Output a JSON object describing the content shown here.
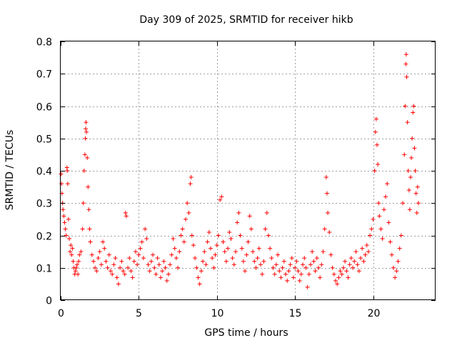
{
  "chart_data": {
    "type": "scatter",
    "title": "Day 309 of 2025, SRMTID for receiver hikb",
    "xlabel": "GPS time / hours",
    "ylabel": "SRMTID / TECUs",
    "xlim": [
      0,
      24
    ],
    "ylim": [
      0,
      0.8
    ],
    "xticks": [
      0,
      5,
      10,
      15,
      20
    ],
    "xtick_labels": [
      "0",
      "5",
      "10",
      "15",
      "20"
    ],
    "yticks": [
      0,
      0.1,
      0.2,
      0.3,
      0.4,
      0.5,
      0.6,
      0.7,
      0.8
    ],
    "ytick_labels": [
      "0",
      "0.1",
      "0.2",
      "0.3",
      "0.4",
      "0.5",
      "0.6",
      "0.7",
      "0.8"
    ],
    "grid": true,
    "marker": "+",
    "color": "#ff0000",
    "series": [
      {
        "name": "SRMTID",
        "points": [
          [
            0.02,
            0.39
          ],
          [
            0.05,
            0.36
          ],
          [
            0.08,
            0.33
          ],
          [
            0.12,
            0.3
          ],
          [
            0.15,
            0.28
          ],
          [
            0.2,
            0.26
          ],
          [
            0.25,
            0.24
          ],
          [
            0.3,
            0.22
          ],
          [
            0.35,
            0.2
          ],
          [
            0.4,
            0.41
          ],
          [
            0.42,
            0.4
          ],
          [
            0.45,
            0.36
          ],
          [
            0.5,
            0.25
          ],
          [
            0.55,
            0.19
          ],
          [
            0.6,
            0.15
          ],
          [
            0.65,
            0.17
          ],
          [
            0.7,
            0.14
          ],
          [
            0.75,
            0.16
          ],
          [
            0.8,
            0.12
          ],
          [
            0.85,
            0.1
          ],
          [
            0.9,
            0.08
          ],
          [
            0.95,
            0.09
          ],
          [
            1.0,
            0.1
          ],
          [
            1.05,
            0.11
          ],
          [
            1.1,
            0.08
          ],
          [
            1.15,
            0.12
          ],
          [
            1.2,
            0.14
          ],
          [
            1.3,
            0.15
          ],
          [
            1.4,
            0.22
          ],
          [
            1.45,
            0.3
          ],
          [
            1.5,
            0.4
          ],
          [
            1.55,
            0.45
          ],
          [
            1.58,
            0.5
          ],
          [
            1.6,
            0.53
          ],
          [
            1.62,
            0.55
          ],
          [
            1.65,
            0.52
          ],
          [
            1.7,
            0.44
          ],
          [
            1.75,
            0.35
          ],
          [
            1.8,
            0.28
          ],
          [
            1.85,
            0.22
          ],
          [
            1.9,
            0.18
          ],
          [
            2.0,
            0.14
          ],
          [
            2.1,
            0.12
          ],
          [
            2.2,
            0.1
          ],
          [
            2.3,
            0.09
          ],
          [
            2.4,
            0.13
          ],
          [
            2.5,
            0.15
          ],
          [
            2.6,
            0.11
          ],
          [
            2.7,
            0.18
          ],
          [
            2.8,
            0.16
          ],
          [
            2.9,
            0.12
          ],
          [
            3.0,
            0.1
          ],
          [
            3.1,
            0.14
          ],
          [
            3.2,
            0.09
          ],
          [
            3.3,
            0.08
          ],
          [
            3.4,
            0.11
          ],
          [
            3.5,
            0.13
          ],
          [
            3.6,
            0.07
          ],
          [
            3.7,
            0.05
          ],
          [
            3.8,
            0.1
          ],
          [
            3.9,
            0.12
          ],
          [
            4.0,
            0.09
          ],
          [
            4.1,
            0.08
          ],
          [
            4.15,
            0.27
          ],
          [
            4.2,
            0.26
          ],
          [
            4.3,
            0.1
          ],
          [
            4.4,
            0.13
          ],
          [
            4.5,
            0.09
          ],
          [
            4.6,
            0.07
          ],
          [
            4.7,
            0.12
          ],
          [
            4.8,
            0.15
          ],
          [
            4.9,
            0.11
          ],
          [
            5.0,
            0.14
          ],
          [
            5.1,
            0.16
          ],
          [
            5.2,
            0.18
          ],
          [
            5.3,
            0.13
          ],
          [
            5.4,
            0.22
          ],
          [
            5.5,
            0.19
          ],
          [
            5.6,
            0.11
          ],
          [
            5.7,
            0.09
          ],
          [
            5.8,
            0.12
          ],
          [
            5.9,
            0.14
          ],
          [
            6.0,
            0.1
          ],
          [
            6.1,
            0.08
          ],
          [
            6.2,
            0.13
          ],
          [
            6.3,
            0.11
          ],
          [
            6.4,
            0.07
          ],
          [
            6.5,
            0.09
          ],
          [
            6.6,
            0.12
          ],
          [
            6.7,
            0.1
          ],
          [
            6.8,
            0.06
          ],
          [
            6.9,
            0.08
          ],
          [
            7.0,
            0.11
          ],
          [
            7.1,
            0.14
          ],
          [
            7.2,
            0.19
          ],
          [
            7.3,
            0.16
          ],
          [
            7.4,
            0.13
          ],
          [
            7.5,
            0.1
          ],
          [
            7.6,
            0.15
          ],
          [
            7.7,
            0.2
          ],
          [
            7.8,
            0.22
          ],
          [
            7.9,
            0.18
          ],
          [
            8.0,
            0.25
          ],
          [
            8.1,
            0.3
          ],
          [
            8.2,
            0.27
          ],
          [
            8.3,
            0.36
          ],
          [
            8.35,
            0.38
          ],
          [
            8.4,
            0.2
          ],
          [
            8.5,
            0.17
          ],
          [
            8.6,
            0.13
          ],
          [
            8.7,
            0.1
          ],
          [
            8.8,
            0.07
          ],
          [
            8.9,
            0.05
          ],
          [
            9.0,
            0.09
          ],
          [
            9.1,
            0.12
          ],
          [
            9.2,
            0.15
          ],
          [
            9.3,
            0.11
          ],
          [
            9.4,
            0.18
          ],
          [
            9.5,
            0.21
          ],
          [
            9.6,
            0.16
          ],
          [
            9.7,
            0.13
          ],
          [
            9.8,
            0.1
          ],
          [
            9.9,
            0.14
          ],
          [
            10.0,
            0.17
          ],
          [
            10.1,
            0.2
          ],
          [
            10.2,
            0.31
          ],
          [
            10.3,
            0.32
          ],
          [
            10.4,
            0.18
          ],
          [
            10.5,
            0.15
          ],
          [
            10.6,
            0.12
          ],
          [
            10.7,
            0.16
          ],
          [
            10.8,
            0.21
          ],
          [
            10.9,
            0.19
          ],
          [
            11.0,
            0.13
          ],
          [
            11.1,
            0.11
          ],
          [
            11.2,
            0.15
          ],
          [
            11.3,
            0.24
          ],
          [
            11.4,
            0.27
          ],
          [
            11.5,
            0.2
          ],
          [
            11.6,
            0.16
          ],
          [
            11.7,
            0.12
          ],
          [
            11.8,
            0.09
          ],
          [
            11.9,
            0.14
          ],
          [
            12.0,
            0.18
          ],
          [
            12.1,
            0.26
          ],
          [
            12.2,
            0.22
          ],
          [
            12.3,
            0.15
          ],
          [
            12.4,
            0.12
          ],
          [
            12.5,
            0.1
          ],
          [
            12.6,
            0.13
          ],
          [
            12.7,
            0.16
          ],
          [
            12.8,
            0.11
          ],
          [
            12.9,
            0.08
          ],
          [
            13.0,
            0.12
          ],
          [
            13.1,
            0.22
          ],
          [
            13.2,
            0.27
          ],
          [
            13.3,
            0.2
          ],
          [
            13.4,
            0.16
          ],
          [
            13.5,
            0.13
          ],
          [
            13.6,
            0.1
          ],
          [
            13.7,
            0.08
          ],
          [
            13.8,
            0.11
          ],
          [
            13.9,
            0.14
          ],
          [
            14.0,
            0.09
          ],
          [
            14.1,
            0.07
          ],
          [
            14.2,
            0.1
          ],
          [
            14.3,
            0.12
          ],
          [
            14.4,
            0.08
          ],
          [
            14.5,
            0.06
          ],
          [
            14.6,
            0.09
          ],
          [
            14.7,
            0.11
          ],
          [
            14.8,
            0.13
          ],
          [
            14.9,
            0.07
          ],
          [
            15.0,
            0.1
          ],
          [
            15.1,
            0.12
          ],
          [
            15.2,
            0.09
          ],
          [
            15.3,
            0.06
          ],
          [
            15.4,
            0.08
          ],
          [
            15.5,
            0.11
          ],
          [
            15.6,
            0.13
          ],
          [
            15.7,
            0.1
          ],
          [
            15.8,
            0.04
          ],
          [
            15.9,
            0.08
          ],
          [
            16.0,
            0.11
          ],
          [
            16.1,
            0.15
          ],
          [
            16.2,
            0.12
          ],
          [
            16.3,
            0.09
          ],
          [
            16.4,
            0.13
          ],
          [
            16.5,
            0.1
          ],
          [
            16.6,
            0.07
          ],
          [
            16.7,
            0.11
          ],
          [
            16.8,
            0.15
          ],
          [
            16.9,
            0.22
          ],
          [
            17.0,
            0.38
          ],
          [
            17.05,
            0.33
          ],
          [
            17.1,
            0.27
          ],
          [
            17.2,
            0.21
          ],
          [
            17.3,
            0.14
          ],
          [
            17.4,
            0.1
          ],
          [
            17.5,
            0.08
          ],
          [
            17.6,
            0.06
          ],
          [
            17.7,
            0.05
          ],
          [
            17.8,
            0.07
          ],
          [
            17.9,
            0.09
          ],
          [
            18.0,
            0.08
          ],
          [
            18.1,
            0.1
          ],
          [
            18.2,
            0.12
          ],
          [
            18.3,
            0.09
          ],
          [
            18.4,
            0.07
          ],
          [
            18.5,
            0.11
          ],
          [
            18.6,
            0.13
          ],
          [
            18.7,
            0.1
          ],
          [
            18.8,
            0.12
          ],
          [
            18.9,
            0.15
          ],
          [
            19.0,
            0.11
          ],
          [
            19.1,
            0.09
          ],
          [
            19.2,
            0.13
          ],
          [
            19.3,
            0.16
          ],
          [
            19.4,
            0.12
          ],
          [
            19.5,
            0.14
          ],
          [
            19.6,
            0.17
          ],
          [
            19.7,
            0.15
          ],
          [
            19.8,
            0.2
          ],
          [
            19.9,
            0.22
          ],
          [
            20.0,
            0.25
          ],
          [
            20.1,
            0.4
          ],
          [
            20.15,
            0.52
          ],
          [
            20.2,
            0.56
          ],
          [
            20.25,
            0.48
          ],
          [
            20.3,
            0.42
          ],
          [
            20.35,
            0.3
          ],
          [
            20.4,
            0.26
          ],
          [
            20.5,
            0.22
          ],
          [
            20.6,
            0.19
          ],
          [
            20.7,
            0.28
          ],
          [
            20.8,
            0.32
          ],
          [
            20.9,
            0.36
          ],
          [
            21.0,
            0.24
          ],
          [
            21.1,
            0.18
          ],
          [
            21.2,
            0.14
          ],
          [
            21.3,
            0.1
          ],
          [
            21.4,
            0.07
          ],
          [
            21.5,
            0.09
          ],
          [
            21.6,
            0.12
          ],
          [
            21.7,
            0.16
          ],
          [
            21.8,
            0.2
          ],
          [
            21.9,
            0.3
          ],
          [
            22.0,
            0.45
          ],
          [
            22.05,
            0.6
          ],
          [
            22.1,
            0.73
          ],
          [
            22.12,
            0.76
          ],
          [
            22.15,
            0.69
          ],
          [
            22.2,
            0.55
          ],
          [
            22.25,
            0.4
          ],
          [
            22.3,
            0.34
          ],
          [
            22.35,
            0.28
          ],
          [
            22.4,
            0.38
          ],
          [
            22.45,
            0.44
          ],
          [
            22.5,
            0.5
          ],
          [
            22.55,
            0.58
          ],
          [
            22.6,
            0.6
          ],
          [
            22.65,
            0.47
          ],
          [
            22.7,
            0.4
          ],
          [
            22.75,
            0.33
          ],
          [
            22.8,
            0.27
          ],
          [
            22.85,
            0.35
          ],
          [
            22.9,
            0.3
          ]
        ]
      }
    ]
  }
}
